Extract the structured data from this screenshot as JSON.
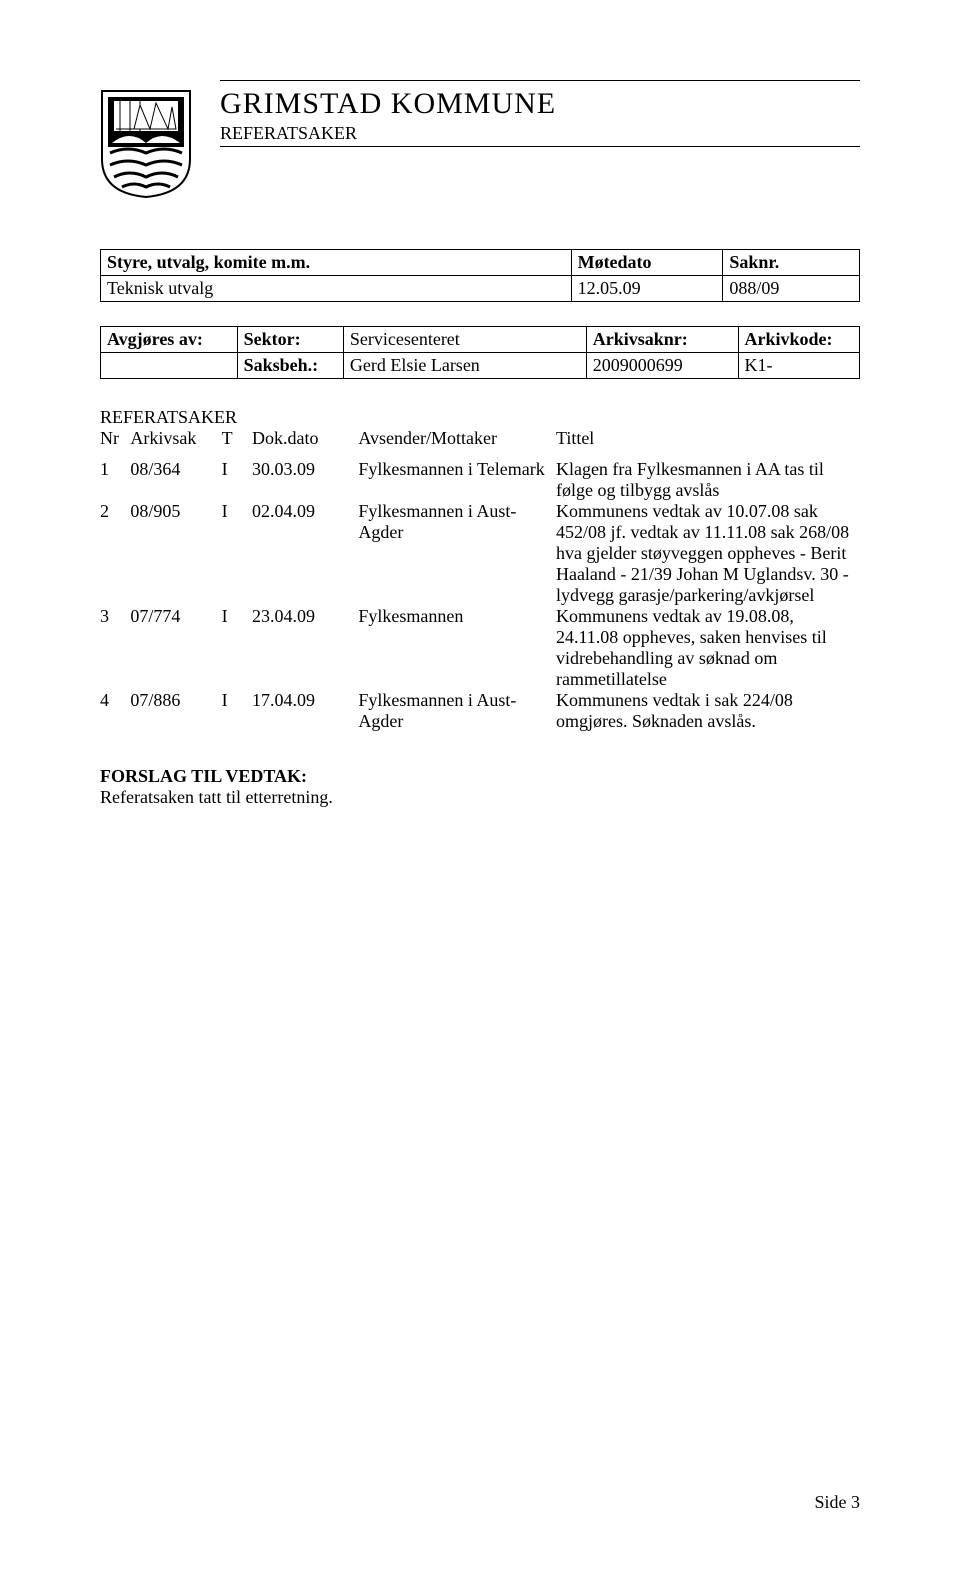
{
  "header": {
    "org": "GRIMSTAD KOMMUNE",
    "doc_type": "REFERATSAKER"
  },
  "meta1": {
    "headers": [
      "Styre, utvalg, komite m.m.",
      "Møtedato",
      "Saknr."
    ],
    "row": [
      "Teknisk utvalg",
      "12.05.09",
      "088/09"
    ]
  },
  "meta2": {
    "row1": [
      "Avgjøres av:",
      "Sektor:",
      "Servicesenteret",
      "Arkivsaknr:",
      "Arkivkode:"
    ],
    "row2": [
      "",
      "Saksbeh.:",
      "Gerd Elsie Larsen",
      "2009000699",
      "K1-"
    ]
  },
  "ref_heading": "REFERATSAKER",
  "items_header": [
    "Nr",
    "Arkivsak",
    "T",
    "Dok.dato",
    "Avsender/Mottaker",
    "Tittel"
  ],
  "items": [
    {
      "nr": "1",
      "arkivsak": "08/364",
      "t": "I",
      "dato": "30.03.09",
      "from": "Fylkesmannen i Telemark",
      "tittel": "Klagen fra Fylkesmannen i AA tas til følge og tilbygg avslås"
    },
    {
      "nr": "2",
      "arkivsak": "08/905",
      "t": "I",
      "dato": "02.04.09",
      "from": "Fylkesmannen i Aust-Agder",
      "tittel": "Kommunens vedtak av 10.07.08 sak 452/08 jf. vedtak av 11.11.08 sak 268/08 hva gjelder støyveggen oppheves - Berit Haaland - 21/39 Johan M Uglandsv. 30 - lydvegg garasje/parkering/avkjørsel"
    },
    {
      "nr": "3",
      "arkivsak": "07/774",
      "t": "I",
      "dato": "23.04.09",
      "from": "Fylkesmannen",
      "tittel": "Kommunens vedtak av 19.08.08, 24.11.08 oppheves, saken henvises til vidrebehandling av søknad om rammetillatelse"
    },
    {
      "nr": "4",
      "arkivsak": "07/886",
      "t": "I",
      "dato": "17.04.09",
      "from": "Fylkesmannen i Aust-Agder",
      "tittel": "Kommunens vedtak i sak 224/08 omgjøres. Søknaden avslås."
    }
  ],
  "forslag": {
    "heading": "FORSLAG TIL VEDTAK:",
    "text": "Referatsaken tatt til etterretning."
  },
  "page_number": "Side 3"
}
